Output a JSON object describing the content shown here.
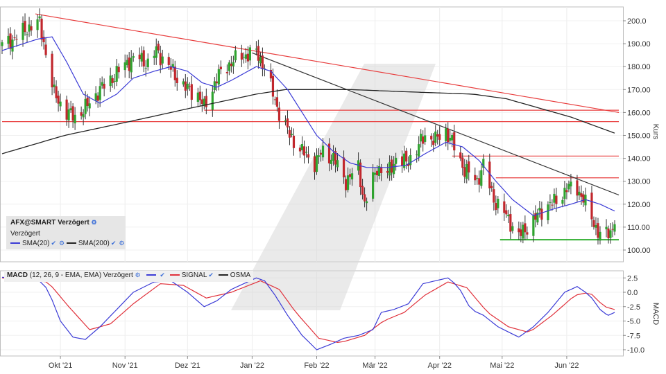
{
  "price_panel": {
    "title": "AFX@SMART Verzögert",
    "subtitle": "Verzögert",
    "legend": [
      {
        "label": "SMA(20)",
        "color": "#3b3bd6"
      },
      {
        "label": "SMA(200)",
        "color": "#222222"
      }
    ],
    "axis_title": "Kurs",
    "y_ticks": [
      "200.0",
      "190.00",
      "180.00",
      "170.00",
      "160.00",
      "150.00",
      "140.00",
      "130.00",
      "120.00",
      "110.00",
      "100.00"
    ]
  },
  "macd_panel": {
    "label_name": "MACD",
    "label_params": "(12, 26, 9 - EMA, EMA) Verzögert",
    "signal_label": "SIGNAL",
    "osma_label": "OSMA",
    "axis_title": "MACD",
    "y_ticks": [
      "2.5",
      "0.0",
      "-2.5",
      "-5.0",
      "-7.5",
      "-10.0"
    ],
    "colors": {
      "macd": "#3b3bd6",
      "signal": "#e0303a",
      "osma": "#222222"
    }
  },
  "x_ticks": [
    "Okt '21",
    "Nov '21",
    "Dez '21",
    "Jan '22",
    "Feb '22",
    "Mär '22",
    "Apr '22",
    "Mai '22",
    "Jun '22"
  ],
  "chart_data": {
    "type": "line",
    "x_range": [
      "2021-09-03",
      "2022-06-24"
    ],
    "price": {
      "ylim": [
        95,
        205
      ],
      "close_anchors": [
        [
          "2021-09-03",
          189
        ],
        [
          "2021-09-10",
          193
        ],
        [
          "2021-09-17",
          198
        ],
        [
          "2021-09-21",
          199
        ],
        [
          "2021-09-24",
          186
        ],
        [
          "2021-09-28",
          168
        ],
        [
          "2021-10-04",
          160
        ],
        [
          "2021-10-08",
          158
        ],
        [
          "2021-10-13",
          162
        ],
        [
          "2021-10-20",
          170
        ],
        [
          "2021-10-27",
          176
        ],
        [
          "2021-11-02",
          182
        ],
        [
          "2021-11-08",
          184
        ],
        [
          "2021-11-12",
          181
        ],
        [
          "2021-11-16",
          187
        ],
        [
          "2021-11-23",
          179
        ],
        [
          "2021-11-26",
          175
        ],
        [
          "2021-12-01",
          170
        ],
        [
          "2021-12-06",
          168
        ],
        [
          "2021-12-09",
          162
        ],
        [
          "2021-12-15",
          175
        ],
        [
          "2021-12-22",
          182
        ],
        [
          "2021-12-28",
          185
        ],
        [
          "2022-01-03",
          186
        ],
        [
          "2022-01-07",
          180
        ],
        [
          "2022-01-11",
          168
        ],
        [
          "2022-01-14",
          160
        ],
        [
          "2022-01-19",
          150
        ],
        [
          "2022-01-25",
          143
        ],
        [
          "2022-01-31",
          138
        ],
        [
          "2022-02-04",
          143
        ],
        [
          "2022-02-09",
          140
        ],
        [
          "2022-02-15",
          130
        ],
        [
          "2022-02-21",
          136
        ],
        [
          "2022-02-24",
          120
        ],
        [
          "2022-03-02",
          136
        ],
        [
          "2022-03-07",
          133
        ],
        [
          "2022-03-11",
          140
        ],
        [
          "2022-03-16",
          138
        ],
        [
          "2022-03-21",
          144
        ],
        [
          "2022-03-25",
          150
        ],
        [
          "2022-03-30",
          148
        ],
        [
          "2022-04-04",
          152
        ],
        [
          "2022-04-08",
          145
        ],
        [
          "2022-04-13",
          135
        ],
        [
          "2022-04-19",
          130
        ],
        [
          "2022-04-22",
          137
        ],
        [
          "2022-04-27",
          122
        ],
        [
          "2022-05-03",
          115
        ],
        [
          "2022-05-09",
          106
        ],
        [
          "2022-05-13",
          110
        ],
        [
          "2022-05-18",
          115
        ],
        [
          "2022-05-23",
          120
        ],
        [
          "2022-05-27",
          121
        ],
        [
          "2022-06-01",
          127
        ],
        [
          "2022-06-06",
          127
        ],
        [
          "2022-06-09",
          122
        ],
        [
          "2022-06-14",
          112
        ],
        [
          "2022-06-17",
          106
        ],
        [
          "2022-06-22",
          108
        ],
        [
          "2022-06-24",
          113
        ]
      ],
      "sma20_anchors": [
        [
          "2021-09-03",
          187
        ],
        [
          "2021-09-20",
          192
        ],
        [
          "2021-09-27",
          193
        ],
        [
          "2021-10-04",
          182
        ],
        [
          "2021-10-12",
          168
        ],
        [
          "2021-10-20",
          164
        ],
        [
          "2021-10-28",
          168
        ],
        [
          "2021-11-05",
          175
        ],
        [
          "2021-11-15",
          178
        ],
        [
          "2021-11-23",
          180
        ],
        [
          "2021-12-01",
          178
        ],
        [
          "2021-12-08",
          173
        ],
        [
          "2021-12-15",
          171
        ],
        [
          "2021-12-22",
          174
        ],
        [
          "2022-01-03",
          180
        ],
        [
          "2022-01-10",
          178
        ],
        [
          "2022-01-18",
          170
        ],
        [
          "2022-01-25",
          160
        ],
        [
          "2022-02-01",
          150
        ],
        [
          "2022-02-09",
          143
        ],
        [
          "2022-02-17",
          138
        ],
        [
          "2022-02-25",
          136
        ],
        [
          "2022-03-07",
          136
        ],
        [
          "2022-03-16",
          137
        ],
        [
          "2022-03-25",
          142
        ],
        [
          "2022-04-04",
          147
        ],
        [
          "2022-04-12",
          145
        ],
        [
          "2022-04-20",
          139
        ],
        [
          "2022-04-28",
          130
        ],
        [
          "2022-05-06",
          122
        ],
        [
          "2022-05-16",
          115
        ],
        [
          "2022-05-26",
          118
        ],
        [
          "2022-06-03",
          120
        ],
        [
          "2022-06-10",
          122
        ],
        [
          "2022-06-17",
          120
        ],
        [
          "2022-06-24",
          117
        ]
      ],
      "sma200_anchors": [
        [
          "2021-09-03",
          142
        ],
        [
          "2021-10-03",
          150
        ],
        [
          "2021-11-03",
          156
        ],
        [
          "2021-12-03",
          162
        ],
        [
          "2022-01-03",
          168
        ],
        [
          "2022-01-17",
          170
        ],
        [
          "2022-02-17",
          170
        ],
        [
          "2022-03-17",
          169
        ],
        [
          "2022-04-17",
          168
        ],
        [
          "2022-05-03",
          166
        ],
        [
          "2022-06-03",
          158
        ],
        [
          "2022-06-24",
          151
        ]
      ],
      "trendlines": [
        {
          "color": "#e83c3c",
          "points": [
            [
              "2021-09-19",
              203
            ],
            [
              "2022-06-26",
              160
            ]
          ]
        },
        {
          "color": "#333333",
          "points": [
            [
              "2022-01-01",
              186
            ],
            [
              "2022-06-26",
              124
            ]
          ]
        }
      ],
      "horizontal_levels": [
        {
          "value": 161,
          "color": "#e83c3c",
          "from": "2021-12-09",
          "to": "2022-06-26"
        },
        {
          "value": 156,
          "color": "#e83c3c",
          "from": "2021-09-03",
          "to": "2022-06-26"
        },
        {
          "value": 141,
          "color": "#e83c3c",
          "from": "2022-04-07",
          "to": "2022-06-26"
        },
        {
          "value": 131.5,
          "color": "#e83c3c",
          "from": "2022-04-28",
          "to": "2022-06-26"
        },
        {
          "value": 104.5,
          "color": "#2fae2f",
          "from": "2022-04-30",
          "to": "2022-06-26"
        }
      ]
    },
    "macd": {
      "ylim": [
        -10.8,
        3.2
      ],
      "macd_anchors": [
        [
          "2021-09-03",
          2.6
        ],
        [
          "2021-09-20",
          2.3
        ],
        [
          "2021-09-25",
          0.5
        ],
        [
          "2021-10-01",
          -5.0
        ],
        [
          "2021-10-07",
          -7.8
        ],
        [
          "2021-10-13",
          -8.2
        ],
        [
          "2021-10-20",
          -6.0
        ],
        [
          "2021-10-28",
          -3.0
        ],
        [
          "2021-11-05",
          0.0
        ],
        [
          "2021-11-15",
          1.8
        ],
        [
          "2021-11-23",
          2.0
        ],
        [
          "2021-12-01",
          0.0
        ],
        [
          "2021-12-09",
          -2.5
        ],
        [
          "2021-12-15",
          -1.5
        ],
        [
          "2021-12-22",
          0.5
        ],
        [
          "2022-01-03",
          2.5
        ],
        [
          "2022-01-07",
          2.0
        ],
        [
          "2022-01-12",
          -0.5
        ],
        [
          "2022-01-18",
          -4.0
        ],
        [
          "2022-01-25",
          -7.5
        ],
        [
          "2022-02-01",
          -10.0
        ],
        [
          "2022-02-08",
          -9.0
        ],
        [
          "2022-02-14",
          -8.0
        ],
        [
          "2022-02-21",
          -7.5
        ],
        [
          "2022-02-28",
          -6.5
        ],
        [
          "2022-03-04",
          -3.5
        ],
        [
          "2022-03-10",
          -3.0
        ],
        [
          "2022-03-17",
          -2.0
        ],
        [
          "2022-03-24",
          1.5
        ],
        [
          "2022-03-30",
          2.0
        ],
        [
          "2022-04-05",
          2.5
        ],
        [
          "2022-04-10",
          1.0
        ],
        [
          "2022-04-16",
          -3.0
        ],
        [
          "2022-04-22",
          -4.0
        ],
        [
          "2022-04-29",
          -6.0
        ],
        [
          "2022-05-09",
          -7.8
        ],
        [
          "2022-05-16",
          -6.0
        ],
        [
          "2022-05-23",
          -3.5
        ],
        [
          "2022-05-31",
          0.0
        ],
        [
          "2022-06-06",
          1.0
        ],
        [
          "2022-06-12",
          -0.5
        ],
        [
          "2022-06-18",
          -3.5
        ],
        [
          "2022-06-21",
          -4.0
        ],
        [
          "2022-06-24",
          -3.5
        ]
      ],
      "signal_anchors": [
        [
          "2021-09-03",
          2.5
        ],
        [
          "2021-09-25",
          1.8
        ],
        [
          "2021-10-05",
          -2.5
        ],
        [
          "2021-10-15",
          -6.5
        ],
        [
          "2021-10-25",
          -5.5
        ],
        [
          "2021-11-05",
          -2.0
        ],
        [
          "2021-11-18",
          1.5
        ],
        [
          "2021-11-29",
          1.2
        ],
        [
          "2021-12-10",
          -1.0
        ],
        [
          "2021-12-22",
          0.0
        ],
        [
          "2022-01-05",
          2.0
        ],
        [
          "2022-01-14",
          0.5
        ],
        [
          "2022-01-22",
          -3.5
        ],
        [
          "2022-02-02",
          -8.0
        ],
        [
          "2022-02-12",
          -8.8
        ],
        [
          "2022-02-24",
          -7.5
        ],
        [
          "2022-03-05",
          -5.0
        ],
        [
          "2022-03-15",
          -3.5
        ],
        [
          "2022-03-25",
          -0.5
        ],
        [
          "2022-04-05",
          1.8
        ],
        [
          "2022-04-14",
          0.8
        ],
        [
          "2022-04-24",
          -3.5
        ],
        [
          "2022-05-04",
          -6.0
        ],
        [
          "2022-05-14",
          -7.0
        ],
        [
          "2022-05-25",
          -4.0
        ],
        [
          "2022-06-05",
          -0.5
        ],
        [
          "2022-06-12",
          0.0
        ],
        [
          "2022-06-19",
          -2.5
        ],
        [
          "2022-06-24",
          -3.0
        ]
      ]
    }
  }
}
